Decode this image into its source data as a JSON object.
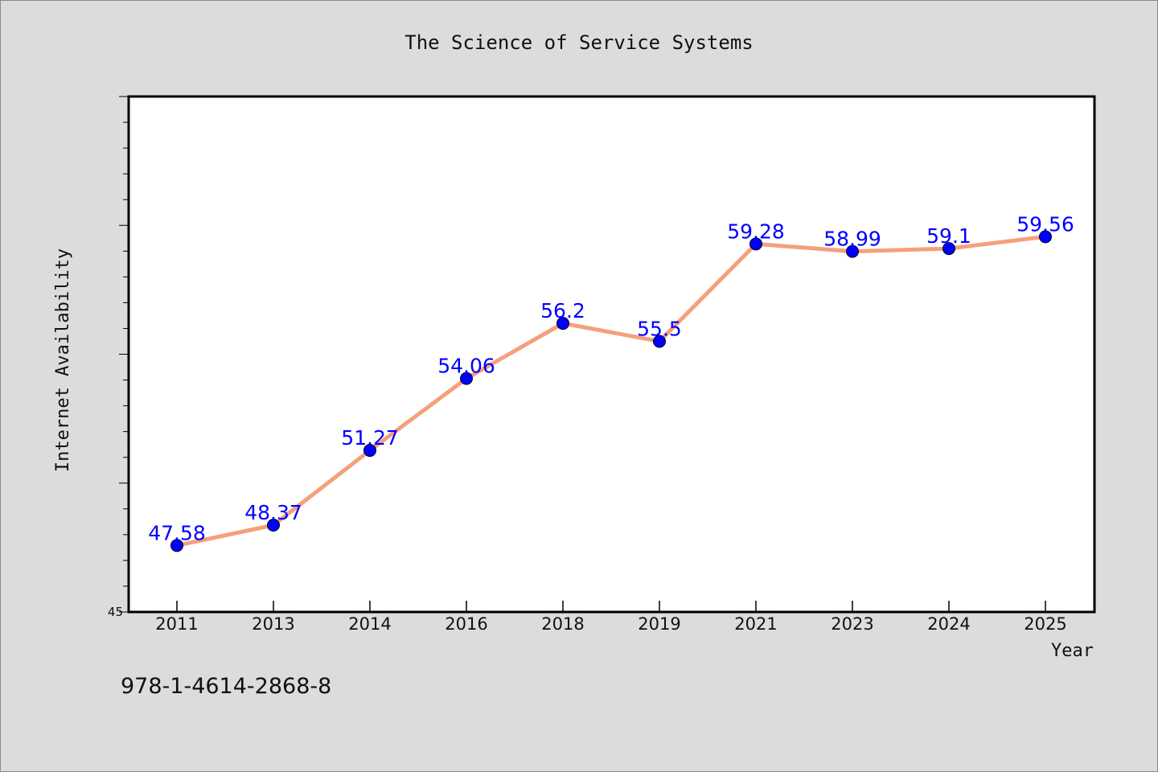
{
  "chart_data": {
    "type": "line",
    "title": "The Science of Service Systems",
    "xlabel": "Year",
    "ylabel": "Internet Availability",
    "categories": [
      "2011",
      "2013",
      "2014",
      "2016",
      "2018",
      "2019",
      "2021",
      "2023",
      "2024",
      "2025"
    ],
    "series": [
      {
        "values": [
          47.58,
          48.37,
          51.27,
          54.06,
          56.2,
          55.5,
          59.28,
          58.99,
          59.1,
          59.56
        ],
        "data_labels": [
          "47.58",
          "48.37",
          "51.27",
          "54.06",
          "56.2",
          "55.5",
          "59.28",
          "58.99",
          "59.1",
          "59.56"
        ],
        "line_color": "#f5a07c",
        "marker_color": "#0000ff"
      }
    ],
    "ylim": [
      45,
      65
    ],
    "yticks_labeled": [
      "45"
    ],
    "grid": false,
    "legend": "none"
  },
  "footer": {
    "isbn": "978-1-4614-2868-8"
  },
  "colors": {
    "background": "#dcdcdc",
    "plot_background": "#ffffff",
    "label_color": "#0000ff"
  }
}
